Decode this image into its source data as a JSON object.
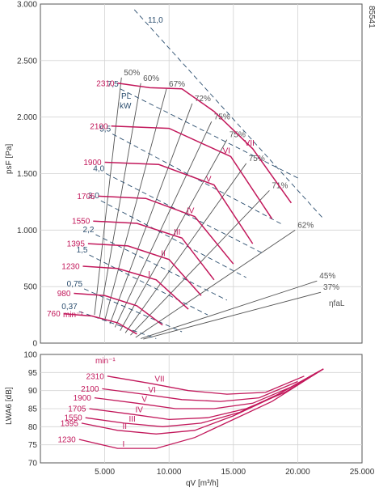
{
  "figure_id": "85541",
  "colors": {
    "speed": "#c2185b",
    "power": "#2a4d6e",
    "efficiency": "#555555",
    "grid": "#d3d3d3"
  },
  "chart_data": [
    {
      "type": "line",
      "xlabel": "qV [m³/h]",
      "ylabel": "psF [Pa]",
      "xlim": [
        0,
        25000
      ],
      "ylim": [
        0,
        3000
      ],
      "xticks": [
        0,
        5000,
        10000,
        15000,
        20000,
        25000
      ],
      "xtick_labels": [
        "",
        "5.000",
        "10.000",
        "15.000",
        "20.000",
        "25.000"
      ],
      "yticks": [
        0,
        500,
        1000,
        1500,
        2000,
        2500,
        3000
      ],
      "ytick_labels": [
        "0",
        "500",
        "1.000",
        "1.500",
        "2.000",
        "2.500",
        "3.000"
      ],
      "grid": true,
      "speed_unit": "min⁻¹",
      "power_header": [
        "PL",
        "kW"
      ],
      "eta_label": "ηfaL",
      "speed_curves": [
        {
          "name": "760",
          "points": [
            [
              1800,
              260
            ],
            [
              4000,
              240
            ],
            [
              6000,
              180
            ],
            [
              7500,
              80
            ]
          ]
        },
        {
          "name": "980",
          "points": [
            [
              2600,
              440
            ],
            [
              5000,
              420
            ],
            [
              7500,
              330
            ],
            [
              9500,
              160
            ]
          ]
        },
        {
          "name": "1230",
          "points": [
            [
              3300,
              680
            ],
            [
              6000,
              660
            ],
            [
              9000,
              560
            ],
            [
              11500,
              300
            ]
          ]
        },
        {
          "name": "1395",
          "points": [
            [
              3700,
              880
            ],
            [
              6800,
              860
            ],
            [
              10000,
              740
            ],
            [
              12500,
              420
            ]
          ]
        },
        {
          "name": "1550",
          "points": [
            [
              4100,
              1080
            ],
            [
              7500,
              1060
            ],
            [
              11000,
              930
            ],
            [
              13500,
              560
            ]
          ]
        },
        {
          "name": "1705",
          "points": [
            [
              4500,
              1300
            ],
            [
              8200,
              1280
            ],
            [
              12000,
              1120
            ],
            [
              15000,
              700
            ]
          ]
        },
        {
          "name": "1900",
          "points": [
            [
              5000,
              1600
            ],
            [
              9200,
              1580
            ],
            [
              13500,
              1400
            ],
            [
              16500,
              880
            ]
          ]
        },
        {
          "name": "2100",
          "points": [
            [
              5500,
              1920
            ],
            [
              10000,
              1900
            ],
            [
              14800,
              1650
            ],
            [
              18000,
              1100
            ]
          ]
        },
        {
          "name": "2310",
          "points": [
            [
              6000,
              2300
            ],
            [
              8500,
              2260
            ],
            [
              11000,
              2250
            ],
            [
              13500,
              2050
            ],
            [
              16500,
              1720
            ],
            [
              19500,
              1240
            ]
          ]
        }
      ],
      "curve_labels": [
        "I",
        "II",
        "III",
        "IV",
        "V",
        "VI",
        "VII"
      ],
      "power_lines": [
        {
          "name": "0,37",
          "start": [
            3000,
            280
          ],
          "end": [
            9000,
            40
          ]
        },
        {
          "name": "0,75",
          "start": [
            3400,
            480
          ],
          "end": [
            11000,
            100
          ]
        },
        {
          "name": "1,5",
          "start": [
            3800,
            780
          ],
          "end": [
            13000,
            250
          ]
        },
        {
          "name": "2,2",
          "start": [
            4300,
            960
          ],
          "end": [
            14500,
            380
          ]
        },
        {
          "name": "3,0",
          "start": [
            4700,
            1260
          ],
          "end": [
            16000,
            580
          ]
        },
        {
          "name": "4,0",
          "start": [
            5100,
            1500
          ],
          "end": [
            17200,
            800
          ]
        },
        {
          "name": "5,5",
          "start": [
            5600,
            1850
          ],
          "end": [
            18800,
            1050
          ]
        },
        {
          "name": "7,5",
          "start": [
            6200,
            2250
          ],
          "end": [
            20200,
            1450
          ]
        },
        {
          "name": "11,0",
          "start": [
            7300,
            2950
          ],
          "end": [
            22000,
            1100
          ]
        }
      ],
      "efficiency_lines": [
        {
          "name": "50%",
          "end": [
            6300,
            2350
          ]
        },
        {
          "name": "60%",
          "end": [
            7800,
            2300
          ]
        },
        {
          "name": "67%",
          "end": [
            9800,
            2250
          ]
        },
        {
          "name": "72%",
          "end": [
            11800,
            2120
          ]
        },
        {
          "name": "75%",
          "end": [
            13300,
            1960
          ]
        },
        {
          "name": "75%",
          "end": [
            14500,
            1800
          ]
        },
        {
          "name": "75%",
          "end": [
            16000,
            1590
          ]
        },
        {
          "name": "71%",
          "end": [
            17800,
            1350
          ]
        },
        {
          "name": "62%",
          "end": [
            19800,
            1000
          ]
        },
        {
          "name": "45%",
          "end": [
            21500,
            550
          ]
        },
        {
          "name": "37%",
          "end": [
            21800,
            450
          ]
        }
      ]
    },
    {
      "type": "line",
      "xlabel": "qV [m³/h]",
      "ylabel": "LWA6 [dB]",
      "xlim": [
        0,
        25000
      ],
      "ylim": [
        70,
        100
      ],
      "yticks": [
        70,
        75,
        80,
        85,
        90,
        95,
        100
      ],
      "ytick_labels": [
        "70",
        "75",
        "80",
        "85",
        "90",
        "95",
        "100"
      ],
      "grid": true,
      "speed_unit": "min⁻¹",
      "series": [
        {
          "name": "1230",
          "points": [
            [
              3000,
              76.5
            ],
            [
              6000,
              74
            ],
            [
              9000,
              74
            ],
            [
              12000,
              77
            ],
            [
              15000,
              82
            ],
            [
              18000,
              87
            ],
            [
              22000,
              96
            ]
          ]
        },
        {
          "name": "1395",
          "points": [
            [
              3200,
              81
            ],
            [
              6000,
              79
            ],
            [
              9000,
              78
            ],
            [
              12000,
              79
            ],
            [
              15000,
              83
            ],
            [
              18000,
              88
            ],
            [
              22000,
              96
            ]
          ]
        },
        {
          "name": "1550",
          "points": [
            [
              3500,
              82.5
            ],
            [
              6500,
              81
            ],
            [
              9500,
              80
            ],
            [
              12500,
              81
            ],
            [
              15500,
              84
            ],
            [
              18500,
              89
            ],
            [
              22000,
              96
            ]
          ]
        },
        {
          "name": "1705",
          "points": [
            [
              3800,
              85
            ],
            [
              7000,
              83.5
            ],
            [
              10000,
              82
            ],
            [
              13000,
              82.5
            ],
            [
              16000,
              85
            ],
            [
              19000,
              89.5
            ],
            [
              22000,
              96
            ]
          ]
        },
        {
          "name": "1900",
          "points": [
            [
              4200,
              88
            ],
            [
              7500,
              86.5
            ],
            [
              10500,
              85
            ],
            [
              13500,
              85
            ],
            [
              16500,
              86.5
            ],
            [
              19500,
              91
            ],
            [
              22000,
              96
            ]
          ]
        },
        {
          "name": "2100",
          "points": [
            [
              4800,
              90.5
            ],
            [
              8000,
              89
            ],
            [
              11000,
              87.5
            ],
            [
              14000,
              87
            ],
            [
              17000,
              88
            ],
            [
              20000,
              92.5
            ]
          ]
        },
        {
          "name": "2310",
          "points": [
            [
              5200,
              94
            ],
            [
              8500,
              92
            ],
            [
              11500,
              90
            ],
            [
              14500,
              89
            ],
            [
              17500,
              89.5
            ],
            [
              20500,
              94
            ]
          ]
        }
      ],
      "curve_labels": [
        "I",
        "II",
        "III",
        "IV",
        "V",
        "VI",
        "VII"
      ]
    }
  ]
}
